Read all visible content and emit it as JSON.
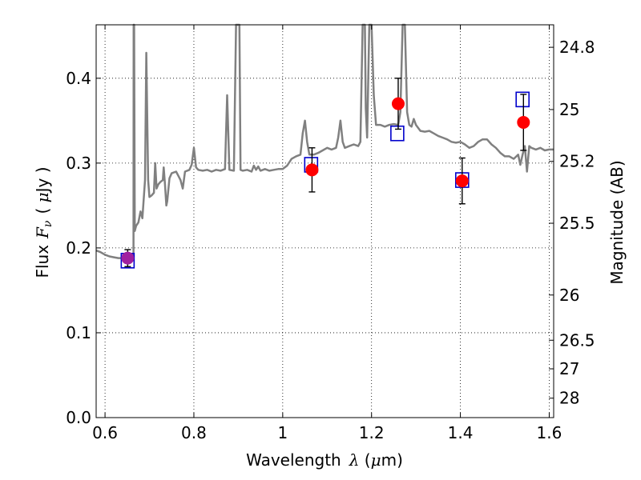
{
  "chart_data": {
    "type": "line",
    "xlabel_text": "Wavelength",
    "xlabel_symbol": "λ",
    "xlabel_unit_open": " (",
    "xlabel_unit_mu": "μ",
    "xlabel_unit_close": "m)",
    "ylabel_prefix": "Flux",
    "ylabel_symbol": "F",
    "ylabel_sub": "ν",
    "ylabel_unit_open": "( ",
    "ylabel_unit_mu": "μ",
    "ylabel_unit_close": "Jy )",
    "y2label": "Magnitude (AB)",
    "xlim": [
      0.58,
      1.61
    ],
    "ylim": [
      0.0,
      0.463
    ],
    "grid": true,
    "x_ticks": [
      0.6,
      0.8,
      1.0,
      1.2,
      1.4,
      1.6
    ],
    "x_tick_labels": [
      "0.6",
      "0.8",
      "1",
      "1.2",
      "1.4",
      "1.6"
    ],
    "y_ticks": [
      0.0,
      0.1,
      0.2,
      0.3,
      0.4
    ],
    "y_tick_labels": [
      "0.0",
      "0.1",
      "0.2",
      "0.3",
      "0.4"
    ],
    "y2_ticks": [
      {
        "label": "24.8",
        "flux": 0.4365
      },
      {
        "label": "25",
        "flux": 0.3631
      },
      {
        "label": "25.2",
        "flux": 0.302
      },
      {
        "label": "25.5",
        "flux": 0.2291
      },
      {
        "label": "26",
        "flux": 0.1445
      },
      {
        "label": "26.5",
        "flux": 0.0912
      },
      {
        "label": "27",
        "flux": 0.0575
      },
      {
        "label": "28",
        "flux": 0.0229
      }
    ],
    "series": [
      {
        "style": "model-spectrum",
        "color": "#808080",
        "points": [
          [
            0.58,
            0.197
          ],
          [
            0.59,
            0.195
          ],
          [
            0.6,
            0.192
          ],
          [
            0.61,
            0.19
          ],
          [
            0.62,
            0.189
          ],
          [
            0.63,
            0.188
          ],
          [
            0.64,
            0.188
          ],
          [
            0.65,
            0.188
          ],
          [
            0.655,
            0.189
          ],
          [
            0.66,
            0.187
          ],
          [
            0.664,
            0.186
          ],
          [
            0.6645,
            0.463
          ],
          [
            0.6655,
            0.463
          ],
          [
            0.667,
            0.22
          ],
          [
            0.67,
            0.226
          ],
          [
            0.675,
            0.23
          ],
          [
            0.68,
            0.243
          ],
          [
            0.684,
            0.235
          ],
          [
            0.69,
            0.28
          ],
          [
            0.693,
            0.43
          ],
          [
            0.697,
            0.28
          ],
          [
            0.7,
            0.26
          ],
          [
            0.705,
            0.262
          ],
          [
            0.71,
            0.265
          ],
          [
            0.713,
            0.3
          ],
          [
            0.716,
            0.27
          ],
          [
            0.72,
            0.275
          ],
          [
            0.725,
            0.278
          ],
          [
            0.73,
            0.28
          ],
          [
            0.732,
            0.295
          ],
          [
            0.735,
            0.275
          ],
          [
            0.738,
            0.25
          ],
          [
            0.74,
            0.255
          ],
          [
            0.745,
            0.282
          ],
          [
            0.75,
            0.288
          ],
          [
            0.76,
            0.29
          ],
          [
            0.765,
            0.285
          ],
          [
            0.77,
            0.28
          ],
          [
            0.775,
            0.27
          ],
          [
            0.78,
            0.29
          ],
          [
            0.79,
            0.292
          ],
          [
            0.795,
            0.298
          ],
          [
            0.8,
            0.318
          ],
          [
            0.805,
            0.295
          ],
          [
            0.81,
            0.292
          ],
          [
            0.82,
            0.291
          ],
          [
            0.83,
            0.292
          ],
          [
            0.84,
            0.29
          ],
          [
            0.85,
            0.292
          ],
          [
            0.86,
            0.291
          ],
          [
            0.87,
            0.293
          ],
          [
            0.875,
            0.38
          ],
          [
            0.88,
            0.292
          ],
          [
            0.89,
            0.291
          ],
          [
            0.895,
            0.463
          ],
          [
            0.9025,
            0.463
          ],
          [
            0.905,
            0.292
          ],
          [
            0.91,
            0.291
          ],
          [
            0.92,
            0.292
          ],
          [
            0.93,
            0.29
          ],
          [
            0.935,
            0.297
          ],
          [
            0.94,
            0.292
          ],
          [
            0.945,
            0.296
          ],
          [
            0.95,
            0.291
          ],
          [
            0.96,
            0.293
          ],
          [
            0.97,
            0.291
          ],
          [
            0.98,
            0.292
          ],
          [
            0.99,
            0.293
          ],
          [
            1.0,
            0.293
          ],
          [
            1.01,
            0.297
          ],
          [
            1.02,
            0.305
          ],
          [
            1.03,
            0.308
          ],
          [
            1.04,
            0.31
          ],
          [
            1.045,
            0.335
          ],
          [
            1.05,
            0.35
          ],
          [
            1.055,
            0.325
          ],
          [
            1.06,
            0.31
          ],
          [
            1.07,
            0.31
          ],
          [
            1.08,
            0.312
          ],
          [
            1.09,
            0.315
          ],
          [
            1.1,
            0.318
          ],
          [
            1.11,
            0.316
          ],
          [
            1.12,
            0.318
          ],
          [
            1.125,
            0.33
          ],
          [
            1.13,
            0.35
          ],
          [
            1.135,
            0.325
          ],
          [
            1.14,
            0.318
          ],
          [
            1.15,
            0.32
          ],
          [
            1.16,
            0.322
          ],
          [
            1.17,
            0.32
          ],
          [
            1.175,
            0.325
          ],
          [
            1.18,
            0.463
          ],
          [
            1.185,
            0.463
          ],
          [
            1.187,
            0.365
          ],
          [
            1.19,
            0.33
          ],
          [
            1.195,
            0.463
          ],
          [
            1.2,
            0.463
          ],
          [
            1.205,
            0.38
          ],
          [
            1.21,
            0.345
          ],
          [
            1.22,
            0.345
          ],
          [
            1.23,
            0.343
          ],
          [
            1.24,
            0.345
          ],
          [
            1.25,
            0.346
          ],
          [
            1.26,
            0.345
          ],
          [
            1.265,
            0.36
          ],
          [
            1.27,
            0.463
          ],
          [
            1.275,
            0.463
          ],
          [
            1.28,
            0.36
          ],
          [
            1.285,
            0.345
          ],
          [
            1.29,
            0.343
          ],
          [
            1.295,
            0.352
          ],
          [
            1.3,
            0.345
          ],
          [
            1.31,
            0.338
          ],
          [
            1.32,
            0.337
          ],
          [
            1.33,
            0.338
          ],
          [
            1.34,
            0.335
          ],
          [
            1.35,
            0.332
          ],
          [
            1.36,
            0.33
          ],
          [
            1.37,
            0.328
          ],
          [
            1.38,
            0.325
          ],
          [
            1.39,
            0.324
          ],
          [
            1.4,
            0.325
          ],
          [
            1.41,
            0.322
          ],
          [
            1.42,
            0.318
          ],
          [
            1.43,
            0.32
          ],
          [
            1.44,
            0.325
          ],
          [
            1.45,
            0.328
          ],
          [
            1.46,
            0.328
          ],
          [
            1.47,
            0.322
          ],
          [
            1.48,
            0.318
          ],
          [
            1.49,
            0.312
          ],
          [
            1.5,
            0.308
          ],
          [
            1.51,
            0.308
          ],
          [
            1.52,
            0.305
          ],
          [
            1.53,
            0.31
          ],
          [
            1.535,
            0.298
          ],
          [
            1.54,
            0.31
          ],
          [
            1.545,
            0.32
          ],
          [
            1.55,
            0.29
          ],
          [
            1.555,
            0.32
          ],
          [
            1.56,
            0.318
          ],
          [
            1.57,
            0.316
          ],
          [
            1.58,
            0.318
          ],
          [
            1.59,
            0.315
          ],
          [
            1.6,
            0.316
          ],
          [
            1.61,
            0.316
          ]
        ]
      },
      {
        "style": "model-photometry-squares",
        "color": "#0000cc",
        "points": [
          [
            0.651,
            0.185
          ],
          [
            1.064,
            0.298
          ],
          [
            1.258,
            0.335
          ],
          [
            1.404,
            0.28
          ],
          [
            1.54,
            0.375
          ]
        ]
      },
      {
        "style": "observed-points",
        "color": "#ff0000",
        "points": [
          {
            "x": 0.651,
            "y": 0.188,
            "err": 0.01,
            "color": "#a020a0"
          },
          {
            "x": 1.066,
            "y": 0.292,
            "err": 0.026,
            "color": "#ff0000"
          },
          {
            "x": 1.26,
            "y": 0.37,
            "err": 0.03,
            "color": "#ff0000"
          },
          {
            "x": 1.404,
            "y": 0.279,
            "err": 0.027,
            "color": "#ff0000"
          },
          {
            "x": 1.542,
            "y": 0.348,
            "err": 0.033,
            "color": "#ff0000"
          }
        ]
      }
    ]
  }
}
